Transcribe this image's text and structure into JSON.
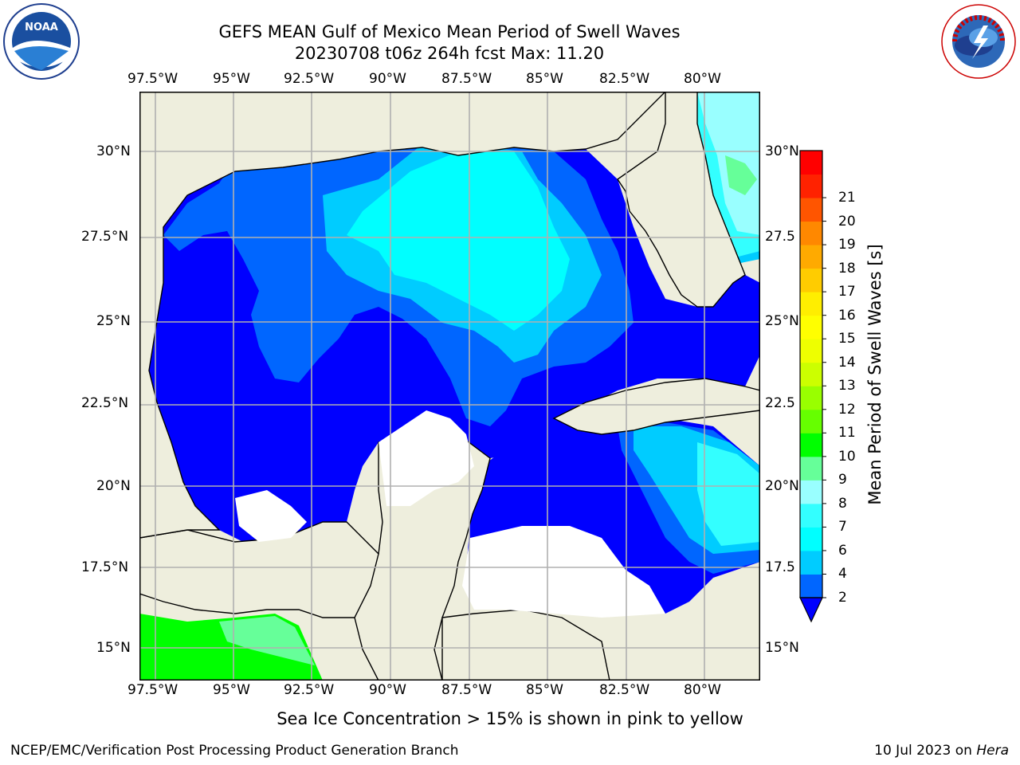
{
  "header": {
    "title_line1": "GEFS MEAN Gulf of Mexico Mean Period of Swell Waves",
    "title_line2": "20230708 t06z 264h fcst   Max: 11.20"
  },
  "axes": {
    "lon_labels": [
      "97.5°W",
      "95°W",
      "92.5°W",
      "90°W",
      "87.5°W",
      "85°W",
      "82.5°W",
      "80°W"
    ],
    "lat_labels_left": [
      "30°N",
      "27.5°N",
      "25°N",
      "22.5°N",
      "20°N",
      "17.5°N",
      "15°N"
    ],
    "lat_labels_right": [
      "30°N",
      "27.5",
      "25°N",
      "22.5",
      "20°N",
      "17.5",
      "15°N"
    ]
  },
  "colorbar": {
    "label": "Mean Period of Swell Waves [s]",
    "ticks": [
      "2",
      "4",
      "6",
      "7",
      "8",
      "9",
      "10",
      "11",
      "12",
      "13",
      "14",
      "15",
      "16",
      "17",
      "18",
      "19",
      "20",
      "21"
    ],
    "colors": [
      "#0066ff",
      "#00ccff",
      "#00ffff",
      "#33ffff",
      "#99ffff",
      "#66ff99",
      "#00ff00",
      "#66ff00",
      "#99ff00",
      "#ccff00",
      "#eeff00",
      "#ffff00",
      "#ffee00",
      "#ffcc00",
      "#ffaa00",
      "#ff8800",
      "#ff5500",
      "#ff2200",
      "#ff0000"
    ],
    "extend_color": "#0000ff"
  },
  "map_colors": {
    "land": "#eeeedd",
    "band_2_4": "#0000ff",
    "band_4_6": "#0066ff",
    "band_6_7": "#00ccff",
    "band_7_8": "#00ffff",
    "band_8_9": "#33ffff",
    "band_9_10": "#99ffff",
    "band_10_11": "#66ff99",
    "band_11_12": "#00ff00"
  },
  "footer": {
    "note": "Sea Ice Concentration > 15% is shown in pink to yellow",
    "credit": "NCEP/EMC/Verification Post Processing Product Generation Branch",
    "date": "10 Jul 2023 on ",
    "host": "Hera"
  },
  "logos": {
    "noaa_text": "NOAA",
    "nws_text": "NATIONAL WEATHER SERVICE"
  }
}
